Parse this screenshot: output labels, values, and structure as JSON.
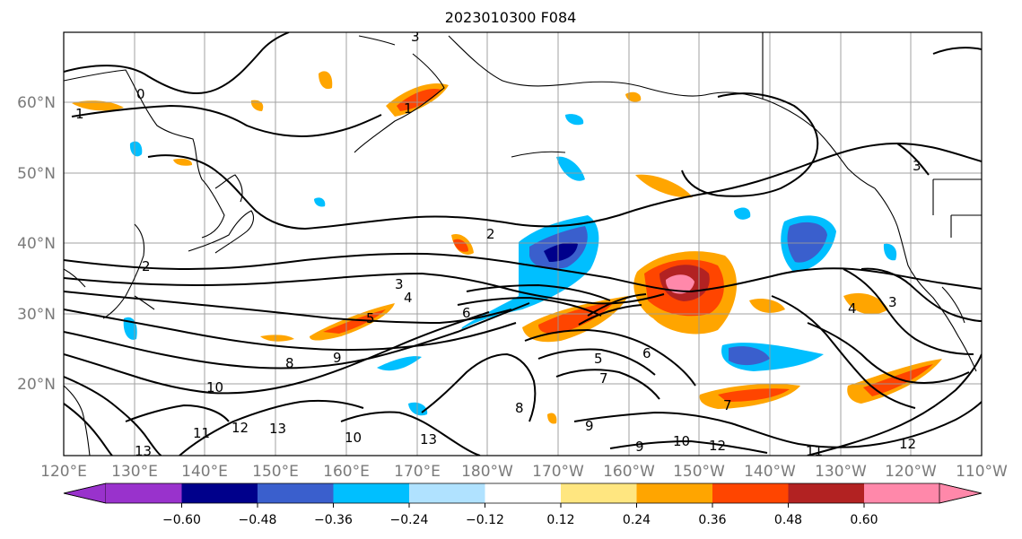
{
  "title": "2023010300 F084",
  "lat_labels": [
    "60°N",
    "50°N",
    "40°N",
    "30°N",
    "20°N"
  ],
  "lon_labels": [
    "120°E",
    "130°E",
    "140°E",
    "150°E",
    "160°E",
    "170°E",
    "180°W",
    "170°W",
    "160°W",
    "150°W",
    "140°W",
    "130°W",
    "120°W",
    "110°W"
  ],
  "colorbar": {
    "tick_labels": [
      "−0.60",
      "−0.48",
      "−0.36",
      "−0.24",
      "−0.12",
      "0.12",
      "0.24",
      "0.36",
      "0.48",
      "0.60"
    ],
    "colors": [
      "#9932cc",
      "#00008b",
      "#3a5fcd",
      "#00bfff",
      "#b0e2ff",
      "#ffffff",
      "#ffe680",
      "#ffa500",
      "#ff4500",
      "#b22222",
      "#ff88aa"
    ]
  },
  "contour_labels": [
    "0",
    "1",
    "2",
    "3",
    "4",
    "5",
    "6",
    "7",
    "8",
    "9",
    "10",
    "11",
    "12",
    "13"
  ],
  "palette": {
    "purple": "#9932cc",
    "navy": "#00008b",
    "royal_blue": "#3a5fcd",
    "deep_sky_blue": "#00bfff",
    "light_blue": "#b0e2ff",
    "light_yellow": "#ffe680",
    "orange": "#ffa500",
    "orange_red": "#ff4500",
    "firebrick": "#b22222",
    "pink": "#ff88aa",
    "gridline": "#999999",
    "tick_label": "#7a7a7a"
  }
}
